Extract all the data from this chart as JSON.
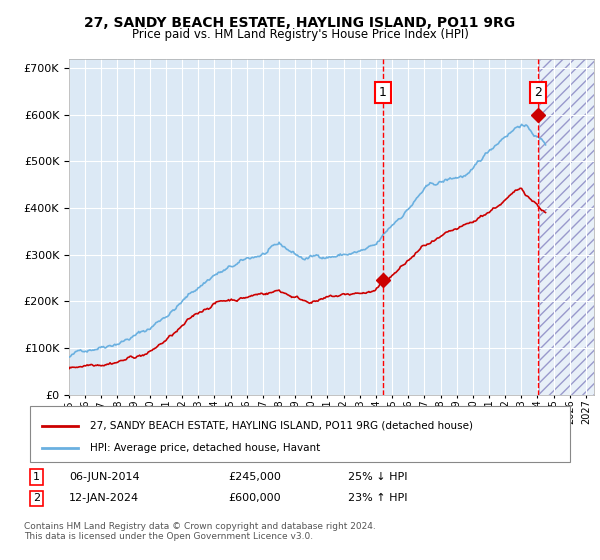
{
  "title": "27, SANDY BEACH ESTATE, HAYLING ISLAND, PO11 9RG",
  "subtitle": "Price paid vs. HM Land Registry's House Price Index (HPI)",
  "background_color": "#ffffff",
  "plot_bg_color": "#dce9f5",
  "grid_color": "#ffffff",
  "hpi_color": "#6ab0e0",
  "price_color": "#cc0000",
  "sale1_date_num": 2014.43,
  "sale1_price": 245000,
  "sale2_date_num": 2024.03,
  "sale2_price": 600000,
  "legend_label1": "27, SANDY BEACH ESTATE, HAYLING ISLAND, PO11 9RG (detached house)",
  "legend_label2": "HPI: Average price, detached house, Havant",
  "table_row1": [
    "1",
    "06-JUN-2014",
    "£245,000",
    "25% ↓ HPI"
  ],
  "table_row2": [
    "2",
    "12-JAN-2024",
    "£600,000",
    "23% ↑ HPI"
  ],
  "footer": "Contains HM Land Registry data © Crown copyright and database right 2024.\nThis data is licensed under the Open Government Licence v3.0.",
  "ylim": [
    0,
    720000
  ],
  "xlim_start": 1995.0,
  "xlim_end": 2027.5
}
